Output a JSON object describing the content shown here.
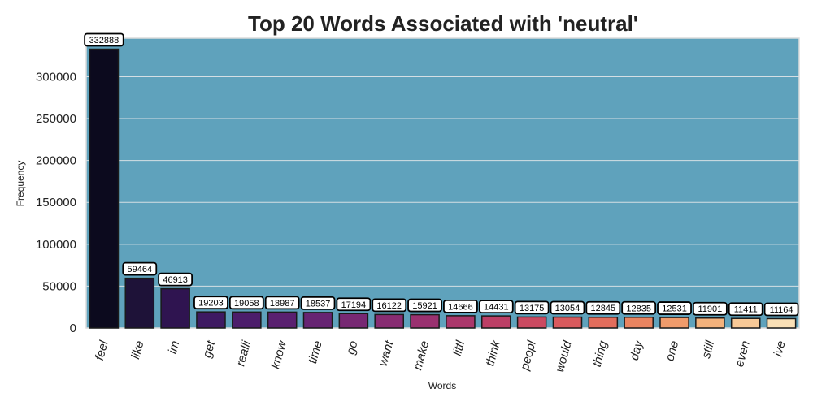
{
  "chart_data": {
    "type": "bar",
    "title": "Top 20 Words Associated with 'neutral'",
    "xlabel": "Words",
    "ylabel": "Frequency",
    "ylim": [
      0,
      346000
    ],
    "yticks": [
      0,
      50000,
      100000,
      150000,
      200000,
      250000,
      300000
    ],
    "grid": true,
    "background_color": "#5fa2bc",
    "categories": [
      "feel",
      "like",
      "im",
      "get",
      "realli",
      "know",
      "time",
      "go",
      "want",
      "make",
      "littl",
      "think",
      "peopl",
      "would",
      "thing",
      "day",
      "one",
      "still",
      "even",
      "ive"
    ],
    "values": [
      332888,
      59464,
      46913,
      19203,
      19058,
      18987,
      18537,
      17194,
      16122,
      15921,
      14666,
      14431,
      13175,
      13054,
      12845,
      12835,
      12531,
      11901,
      11411,
      11164
    ],
    "colors": [
      "#0c0a1e",
      "#1e1238",
      "#2f1450",
      "#3e1a62",
      "#4c1d6b",
      "#5a2070",
      "#672473",
      "#772873",
      "#882c72",
      "#9a3170",
      "#ab376b",
      "#bc3f66",
      "#cb4a61",
      "#d85a5d",
      "#e26d5c",
      "#ea8460",
      "#f09b6b",
      "#f4b27c",
      "#f8c997",
      "#fae0b6"
    ]
  }
}
